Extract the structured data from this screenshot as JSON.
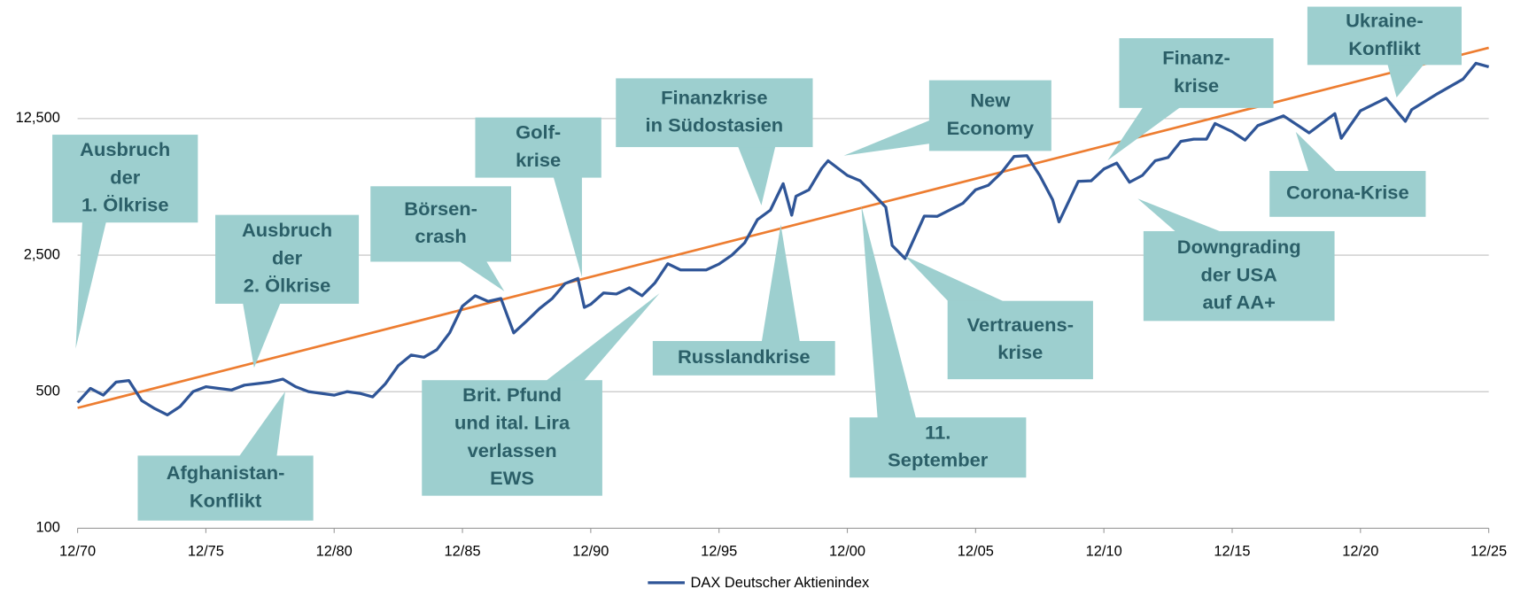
{
  "chart_data": {
    "type": "line",
    "log_scale": true,
    "grid": true,
    "ylim": [
      100,
      50000
    ],
    "yticks": [
      100,
      500,
      {
        "value": 2500,
        "label": "2,500"
      },
      {
        "value": 12500,
        "label": "12,500"
      }
    ],
    "xlim": [
      "12/70",
      "12/25"
    ],
    "xticks": [
      "12/70",
      "12/75",
      "12/80",
      "12/85",
      "12/90",
      "12/95",
      "12/00",
      "12/05",
      "12/10",
      "12/15",
      "12/20",
      "12/25"
    ],
    "legend": "bottom",
    "x": [
      "12/70",
      "06/71",
      "12/71",
      "06/72",
      "12/72",
      "06/73",
      "12/73",
      "06/74",
      "12/74",
      "06/75",
      "12/75",
      "06/76",
      "12/76",
      "06/77",
      "12/77",
      "06/78",
      "12/78",
      "06/79",
      "12/79",
      "06/80",
      "12/80",
      "06/81",
      "12/81",
      "06/82",
      "12/82",
      "06/83",
      "12/83",
      "06/84",
      "12/84",
      "06/85",
      "12/85",
      "06/86",
      "12/86",
      "06/87",
      "12/87",
      "06/88",
      "12/88",
      "06/89",
      "12/89",
      "06/90",
      "09/90",
      "12/90",
      "06/91",
      "12/91",
      "06/92",
      "12/92",
      "06/93",
      "12/93",
      "06/94",
      "12/94",
      "06/95",
      "12/95",
      "06/96",
      "12/96",
      "06/97",
      "12/97",
      "06/98",
      "10/98",
      "12/98",
      "06/99",
      "12/99",
      "03/00",
      "12/00",
      "06/01",
      "12/01",
      "06/02",
      "09/02",
      "03/03",
      "12/03",
      "06/04",
      "12/04",
      "06/05",
      "12/05",
      "06/06",
      "12/06",
      "06/07",
      "12/07",
      "06/08",
      "12/08",
      "03/09",
      "12/09",
      "06/10",
      "12/10",
      "06/11",
      "12/11",
      "06/12",
      "12/12",
      "06/13",
      "12/13",
      "06/14",
      "12/14",
      "04/15",
      "12/15",
      "06/16",
      "12/16",
      "12/17",
      "12/18",
      "12/19",
      "03/20",
      "12/20",
      "12/21",
      "09/22",
      "12/22",
      "12/23",
      "12/24",
      "06/25",
      "12/25"
    ],
    "series": [
      {
        "name": "DAX Deutscher Aktienindex",
        "color": "#2f5597",
        "values": [
          440,
          520,
          480,
          560,
          570,
          450,
          410,
          380,
          420,
          500,
          530,
          520,
          510,
          540,
          550,
          560,
          580,
          530,
          500,
          490,
          480,
          500,
          490,
          470,
          550,
          680,
          770,
          750,
          820,
          1000,
          1370,
          1550,
          1450,
          1500,
          1000,
          1150,
          1330,
          1500,
          1790,
          1900,
          1350,
          1400,
          1600,
          1580,
          1700,
          1550,
          1800,
          2260,
          2100,
          2100,
          2100,
          2250,
          2500,
          2890,
          3800,
          4250,
          5800,
          4000,
          5000,
          5400,
          6950,
          7600,
          6400,
          6000,
          5160,
          4400,
          2800,
          2400,
          3960,
          3950,
          4260,
          4600,
          5400,
          5700,
          6600,
          8000,
          8070,
          6400,
          4800,
          3700,
          5960,
          6000,
          6900,
          7400,
          5900,
          6400,
          7600,
          7900,
          9550,
          9800,
          9800,
          11800,
          10700,
          9700,
          11500,
          12900,
          10560,
          13250,
          9900,
          13700,
          15900,
          12100,
          13900,
          16750,
          19900,
          24000,
          23000
        ]
      }
    ],
    "trend": {
      "color": "#ed7d31",
      "x": [
        "12/70",
        "12/25"
      ],
      "values": [
        413,
        28800
      ]
    },
    "annotations": [
      {
        "lines": [
          "Ausbruch",
          "der",
          "1. Ölkrise"
        ]
      },
      {
        "lines": [
          "Ausbruch",
          "der",
          "2. Ölkrise"
        ]
      },
      {
        "lines": [
          "Afghanistan-",
          "Konflikt"
        ]
      },
      {
        "lines": [
          "Börsen-",
          "crash"
        ]
      },
      {
        "lines": [
          "Golf-",
          "krise"
        ]
      },
      {
        "lines": [
          "Brit. Pfund",
          "und ital. Lira",
          "verlassen",
          "EWS"
        ]
      },
      {
        "lines": [
          "Finanzkrise",
          "in Südostasien"
        ]
      },
      {
        "lines": [
          "Russlandkrise"
        ]
      },
      {
        "lines": [
          "New",
          "Economy"
        ]
      },
      {
        "lines": [
          "11.",
          "September"
        ]
      },
      {
        "lines": [
          "Vertrauens-",
          "krise"
        ]
      },
      {
        "lines": [
          "Finanz-",
          "krise"
        ]
      },
      {
        "lines": [
          "Downgrading",
          "der USA",
          "auf AA+"
        ]
      },
      {
        "lines": [
          "Corona-Krise"
        ]
      },
      {
        "lines": [
          "Ukraine-",
          "Konflikt"
        ]
      }
    ]
  }
}
